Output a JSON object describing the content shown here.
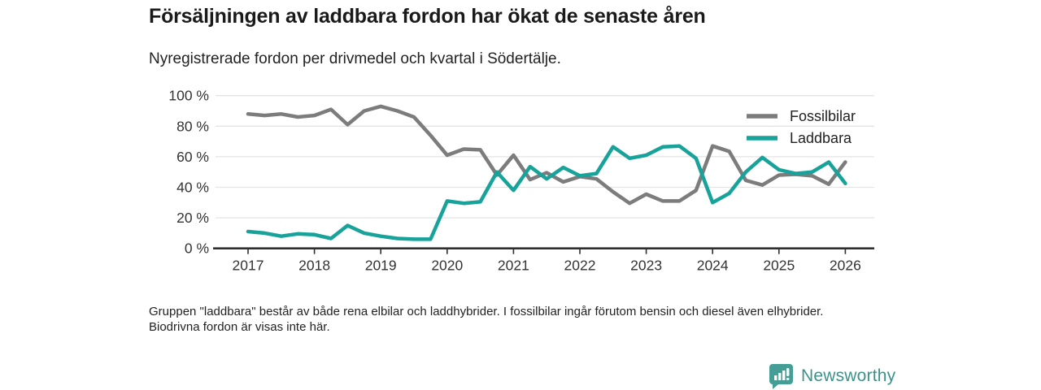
{
  "header": {
    "title": "Försäljningen av laddbara fordon har ökat de senaste åren",
    "subtitle": "Nyregistrerade fordon per drivmedel och kvartal i Södertälje."
  },
  "chart_data": {
    "type": "line",
    "x_quarters": [
      "2017 Q1",
      "2017 Q2",
      "2017 Q3",
      "2017 Q4",
      "2018 Q1",
      "2018 Q2",
      "2018 Q3",
      "2018 Q4",
      "2019 Q1",
      "2019 Q2",
      "2019 Q3",
      "2019 Q4",
      "2020 Q1",
      "2020 Q2",
      "2020 Q3",
      "2020 Q4",
      "2021 Q1",
      "2021 Q2",
      "2021 Q3",
      "2021 Q4",
      "2022 Q1",
      "2022 Q2",
      "2022 Q3",
      "2022 Q4",
      "2023 Q1",
      "2023 Q2",
      "2023 Q3",
      "2023 Q4",
      "2024 Q1",
      "2024 Q2",
      "2024 Q3",
      "2024 Q4",
      "2025 Q1",
      "2025 Q2",
      "2025 Q3",
      "2025 Q4",
      "2026 Q1"
    ],
    "series": [
      {
        "name": "Fossilbilar",
        "color": "#7c7c7c",
        "values": [
          88,
          87,
          88,
          86,
          87,
          91,
          81,
          90,
          93,
          90,
          86,
          74,
          61,
          65,
          64.5,
          48,
          61,
          45,
          49.5,
          43.5,
          47,
          45.5,
          37,
          29.5,
          35.5,
          31,
          31,
          38,
          67,
          63.5,
          44.5,
          41.5,
          48,
          48.5,
          47.5,
          42,
          56.5
        ]
      },
      {
        "name": "Laddbara",
        "color": "#17a29a",
        "values": [
          11,
          10,
          8,
          9.5,
          9,
          6.5,
          15,
          10,
          8,
          6.5,
          6,
          6,
          31,
          29.5,
          30.5,
          50,
          38,
          53.5,
          45.5,
          53,
          47.5,
          49,
          66.5,
          59,
          61,
          66.5,
          67,
          59,
          30,
          36,
          50,
          59.5,
          51.5,
          49,
          50,
          56.5,
          42.5
        ]
      }
    ],
    "x_tick_labels": [
      "2017",
      "2018",
      "2019",
      "2020",
      "2021",
      "2022",
      "2023",
      "2024",
      "2025",
      "2026"
    ],
    "y_tick_labels": [
      "0 %",
      "20 %",
      "40 %",
      "60 %",
      "80 %",
      "100 %"
    ],
    "y_tick_values": [
      0,
      20,
      40,
      60,
      80,
      100
    ],
    "ylim": [
      0,
      100
    ],
    "grid": "horizontal",
    "legend_position": "top-right"
  },
  "footnote": {
    "text": "Gruppen \"laddbara\" består av både rena elbilar och laddhybrider. I fossilbilar ingår förutom bensin och diesel även elhybrider. Biodrivna fordon är visas inte här."
  },
  "logo": {
    "text": "Newsworthy"
  },
  "colors": {
    "teal_line": "#17a29a",
    "gray_line": "#7c7c7c",
    "gridline": "#e4e4e4",
    "axis": "#2f2f2f",
    "tick_text": "#333333",
    "legend_text": "#222222",
    "logo_teal": "#459e95",
    "logo_text_teal": "#3d918b"
  }
}
